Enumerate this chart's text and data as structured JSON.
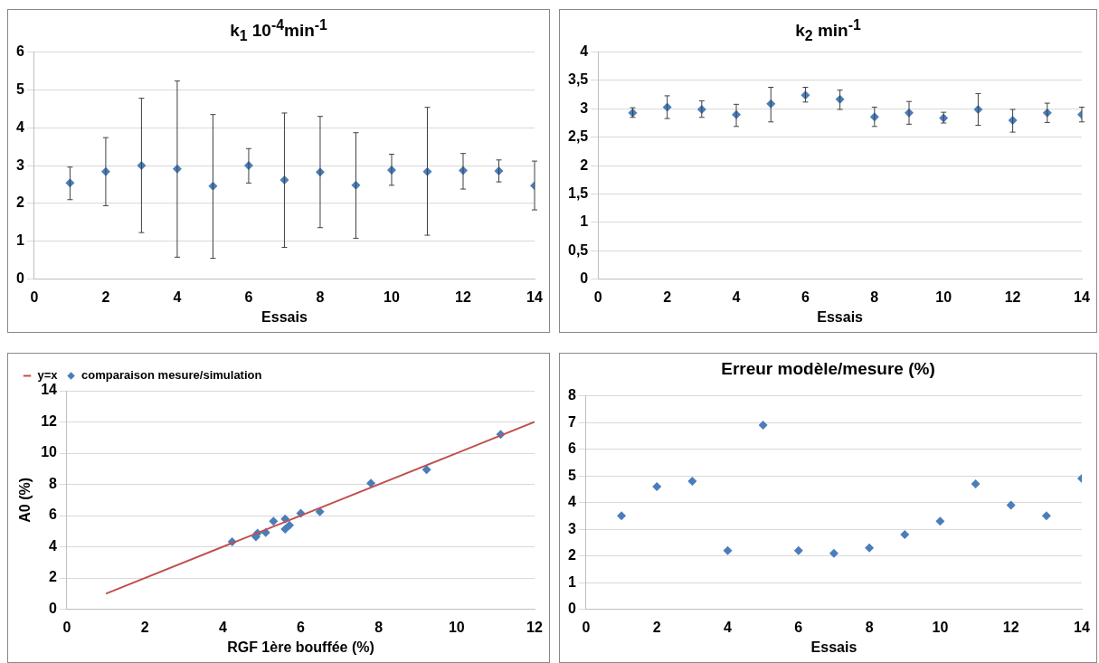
{
  "chart_data": [
    {
      "type": "scatter",
      "title": "k$_{1}$ 10$^{-4}$min$^{-1}$",
      "xlabel": "Essais",
      "x": [
        1,
        2,
        3,
        4,
        5,
        6,
        7,
        8,
        9,
        10,
        11,
        12,
        13,
        14
      ],
      "values": [
        2.54,
        2.84,
        3.0,
        2.91,
        2.46,
        3.0,
        2.62,
        2.83,
        2.48,
        2.88,
        2.84,
        2.87,
        2.86,
        2.47
      ],
      "errors": [
        [
          2.1,
          2.96
        ],
        [
          1.94,
          3.74
        ],
        [
          1.23,
          4.78
        ],
        [
          0.58,
          5.24
        ],
        [
          0.55,
          4.35
        ],
        [
          2.54,
          3.45
        ],
        [
          0.84,
          4.39
        ],
        [
          1.36,
          4.3
        ],
        [
          1.08,
          3.87
        ],
        [
          2.48,
          3.3
        ],
        [
          1.16,
          4.54
        ],
        [
          2.38,
          3.32
        ],
        [
          2.57,
          3.15
        ],
        [
          1.83,
          3.12
        ]
      ],
      "color": "#4a7ebb",
      "xlim": [
        0,
        14
      ],
      "xticks": [
        0,
        2,
        4,
        6,
        8,
        10,
        12,
        14
      ],
      "ylim": [
        0,
        6
      ],
      "yticks": [
        0,
        1,
        2,
        3,
        4,
        5,
        6
      ],
      "grid": "y",
      "marker": "diamond"
    },
    {
      "type": "scatter",
      "title": "k$_{2}$ min$^{-1}$",
      "xlabel": "Essais",
      "x": [
        1,
        2,
        3,
        4,
        5,
        6,
        7,
        8,
        9,
        10,
        11,
        12,
        13,
        14
      ],
      "values": [
        2.93,
        3.03,
        2.99,
        2.9,
        3.09,
        3.24,
        3.17,
        2.86,
        2.93,
        2.84,
        2.99,
        2.8,
        2.93,
        2.9
      ],
      "errors": [
        [
          2.85,
          3.02
        ],
        [
          2.83,
          3.23
        ],
        [
          2.85,
          3.14
        ],
        [
          2.69,
          3.08
        ],
        [
          2.77,
          3.38
        ],
        [
          3.12,
          3.38
        ],
        [
          2.99,
          3.33
        ],
        [
          2.69,
          3.03
        ],
        [
          2.73,
          3.13
        ],
        [
          2.75,
          2.94
        ],
        [
          2.71,
          3.27
        ],
        [
          2.59,
          2.99
        ],
        [
          2.76,
          3.1
        ],
        [
          2.77,
          3.03
        ]
      ],
      "color": "#4a7ebb",
      "xlim": [
        0,
        14
      ],
      "xticks": [
        0,
        2,
        4,
        6,
        8,
        10,
        12,
        14
      ],
      "ylim": [
        0,
        4
      ],
      "yticks": [
        0,
        {
          "value": 0.5,
          "label": "0,5"
        },
        1,
        {
          "value": 1.5,
          "label": "1,5"
        },
        2,
        {
          "value": 2.5,
          "label": "2,5"
        },
        3,
        {
          "value": 3.5,
          "label": "3,5"
        },
        4
      ],
      "grid": "y",
      "marker": "diamond"
    },
    {
      "type": "scatter",
      "xlabel": "RGF 1ère bouffée (%)",
      "ylabel": "A0 (%)",
      "series": [
        {
          "name": "y=x",
          "type": "line",
          "marker": "none",
          "color": "#c0504d",
          "x": [
            1,
            12
          ],
          "values": [
            1,
            12
          ]
        },
        {
          "name": "comparaison mesure/simulation",
          "marker": "diamond",
          "color": "#4a7ebb",
          "x": [
            4.24,
            4.85,
            4.89,
            5.1,
            5.3,
            5.6,
            5.6,
            5.65,
            5.71,
            6.0,
            6.49,
            7.8,
            9.23,
            11.13
          ],
          "values": [
            4.33,
            4.64,
            4.88,
            4.92,
            5.64,
            5.78,
            5.13,
            null,
            5.38,
            6.15,
            6.25,
            8.07,
            8.95,
            11.2
          ]
        }
      ],
      "xlim": [
        0,
        12
      ],
      "xticks": [
        0,
        2,
        4,
        6,
        8,
        10,
        12
      ],
      "ylim": [
        0,
        14
      ],
      "yticks": [
        0,
        2,
        4,
        6,
        8,
        10,
        12,
        14
      ],
      "grid": "y",
      "legend": "top left"
    },
    {
      "type": "scatter",
      "title": "Erreur modèle/mesure (%)",
      "xlabel": "Essais",
      "x": [
        1,
        2,
        3,
        4,
        5,
        6,
        7,
        8,
        9,
        10,
        11,
        12,
        13,
        14
      ],
      "values": [
        3.5,
        4.6,
        4.8,
        2.2,
        6.9,
        2.2,
        2.1,
        2.3,
        2.8,
        3.3,
        4.7,
        3.9,
        3.5,
        4.9
      ],
      "color": "#4a7ebb",
      "xlim": [
        0,
        14
      ],
      "xticks": [
        0,
        2,
        4,
        6,
        8,
        10,
        12,
        14
      ],
      "ylim": [
        0,
        8
      ],
      "yticks": [
        0,
        1,
        2,
        3,
        4,
        5,
        6,
        7,
        8
      ],
      "grid": "y",
      "marker": "diamond"
    }
  ]
}
